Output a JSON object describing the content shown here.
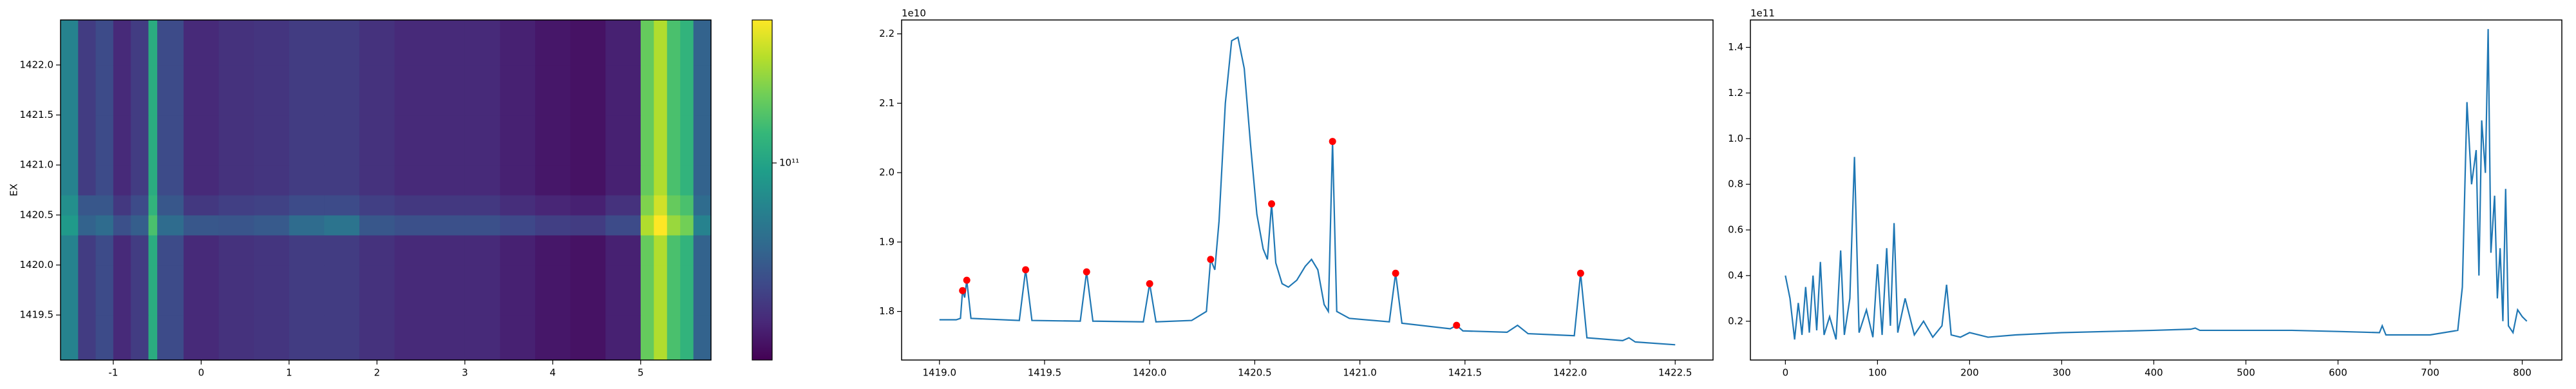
{
  "chart_data": [
    {
      "type": "heatmap",
      "ylabel": "EX",
      "xedges": [
        -1.6,
        -1.4,
        -1.2,
        -1.0,
        -0.8,
        -0.6,
        -0.5,
        -0.2,
        0.2,
        0.6,
        1.0,
        1.4,
        1.8,
        2.2,
        2.6,
        3.0,
        3.4,
        3.8,
        4.2,
        4.6,
        5.0,
        5.15,
        5.3,
        5.45,
        5.6,
        5.8
      ],
      "yedges": [
        1419.05,
        1419.5,
        1420.0,
        1420.3,
        1420.5,
        1420.7,
        1421.0,
        1421.5,
        1422.0,
        1422.45
      ],
      "z": [
        [
          70000000000.0,
          35000000000.0,
          40000000000.0,
          30000000000.0,
          35000000000.0,
          110000000000.0,
          40000000000.0,
          30000000000.0,
          32000000000.0,
          33000000000.0,
          35000000000.0,
          35000000000.0,
          32000000000.0,
          30000000000.0,
          30000000000.0,
          30000000000.0,
          28000000000.0,
          26000000000.0,
          25000000000.0,
          28000000000.0,
          160000000000.0,
          220000000000.0,
          140000000000.0,
          120000000000.0,
          50000000000.0
        ],
        [
          70000000000.0,
          35000000000.0,
          40000000000.0,
          30000000000.0,
          35000000000.0,
          110000000000.0,
          40000000000.0,
          30000000000.0,
          32000000000.0,
          33000000000.0,
          35000000000.0,
          35000000000.0,
          32000000000.0,
          30000000000.0,
          30000000000.0,
          30000000000.0,
          28000000000.0,
          26000000000.0,
          25000000000.0,
          28000000000.0,
          160000000000.0,
          220000000000.0,
          140000000000.0,
          120000000000.0,
          50000000000.0
        ],
        [
          70000000000.0,
          35000000000.0,
          40000000000.0,
          30000000000.0,
          35000000000.0,
          110000000000.0,
          40000000000.0,
          30000000000.0,
          32000000000.0,
          33000000000.0,
          35000000000.0,
          35000000000.0,
          32000000000.0,
          30000000000.0,
          30000000000.0,
          30000000000.0,
          28000000000.0,
          26000000000.0,
          25000000000.0,
          28000000000.0,
          160000000000.0,
          220000000000.0,
          140000000000.0,
          120000000000.0,
          50000000000.0
        ],
        [
          90000000000.0,
          50000000000.0,
          55000000000.0,
          42000000000.0,
          48000000000.0,
          140000000000.0,
          55000000000.0,
          45000000000.0,
          44000000000.0,
          46000000000.0,
          55000000000.0,
          60000000000.0,
          45000000000.0,
          42000000000.0,
          42000000000.0,
          42000000000.0,
          39000000000.0,
          36000000000.0,
          35000000000.0,
          40000000000.0,
          220000000000.0,
          300000000000.0,
          200000000000.0,
          170000000000.0,
          70000000000.0
        ],
        [
          80000000000.0,
          45000000000.0,
          45000000000.0,
          34000000000.0,
          40000000000.0,
          120000000000.0,
          45000000000.0,
          34000000000.0,
          36000000000.0,
          37000000000.0,
          40000000000.0,
          40000000000.0,
          36000000000.0,
          34000000000.0,
          34000000000.0,
          34000000000.0,
          31000000000.0,
          29000000000.0,
          28000000000.0,
          32000000000.0,
          180000000000.0,
          250000000000.0,
          160000000000.0,
          140000000000.0,
          55000000000.0
        ],
        [
          70000000000.0,
          35000000000.0,
          40000000000.0,
          30000000000.0,
          35000000000.0,
          110000000000.0,
          40000000000.0,
          30000000000.0,
          32000000000.0,
          33000000000.0,
          35000000000.0,
          35000000000.0,
          32000000000.0,
          30000000000.0,
          30000000000.0,
          30000000000.0,
          28000000000.0,
          26000000000.0,
          25000000000.0,
          28000000000.0,
          160000000000.0,
          220000000000.0,
          140000000000.0,
          120000000000.0,
          50000000000.0
        ],
        [
          70000000000.0,
          35000000000.0,
          40000000000.0,
          30000000000.0,
          35000000000.0,
          110000000000.0,
          40000000000.0,
          30000000000.0,
          32000000000.0,
          33000000000.0,
          35000000000.0,
          35000000000.0,
          32000000000.0,
          30000000000.0,
          30000000000.0,
          30000000000.0,
          28000000000.0,
          26000000000.0,
          25000000000.0,
          28000000000.0,
          160000000000.0,
          220000000000.0,
          140000000000.0,
          120000000000.0,
          50000000000.0
        ],
        [
          70000000000.0,
          35000000000.0,
          40000000000.0,
          30000000000.0,
          35000000000.0,
          110000000000.0,
          40000000000.0,
          30000000000.0,
          32000000000.0,
          33000000000.0,
          35000000000.0,
          35000000000.0,
          32000000000.0,
          30000000000.0,
          30000000000.0,
          30000000000.0,
          28000000000.0,
          26000000000.0,
          25000000000.0,
          28000000000.0,
          160000000000.0,
          220000000000.0,
          140000000000.0,
          120000000000.0,
          50000000000.0
        ],
        [
          70000000000.0,
          35000000000.0,
          40000000000.0,
          30000000000.0,
          35000000000.0,
          110000000000.0,
          40000000000.0,
          30000000000.0,
          32000000000.0,
          33000000000.0,
          35000000000.0,
          35000000000.0,
          32000000000.0,
          30000000000.0,
          30000000000.0,
          30000000000.0,
          28000000000.0,
          26000000000.0,
          25000000000.0,
          28000000000.0,
          160000000000.0,
          220000000000.0,
          140000000000.0,
          120000000000.0,
          50000000000.0
        ]
      ],
      "xlim": [
        -1.6,
        5.8
      ],
      "ylim": [
        1419.05,
        1422.45
      ],
      "xticks": [
        -1,
        0,
        1,
        2,
        3,
        4,
        5
      ],
      "yticks": [
        1419.5,
        {
          "value": 1420,
          "label": "1420.0"
        },
        1420.5,
        {
          "value": 1421,
          "label": "1421.0"
        },
        1421.5,
        {
          "value": 1422,
          "label": "1422.0"
        }
      ],
      "colorbar": {
        "colormap": "viridis",
        "scale": "log",
        "lim": [
          22000000000.0,
          300000000000.0
        ],
        "ticks": [
          {
            "value": 100000000000.0,
            "label": "10¹¹"
          }
        ]
      }
    },
    {
      "type": "line",
      "offset_label": "1e10",
      "x": [
        1419.0,
        1419.08,
        1419.1,
        1419.11,
        1419.12,
        1419.13,
        1419.15,
        1419.38,
        1419.41,
        1419.44,
        1419.67,
        1419.7,
        1419.73,
        1419.97,
        1420.0,
        1420.03,
        1420.2,
        1420.27,
        1420.29,
        1420.31,
        1420.33,
        1420.36,
        1420.39,
        1420.42,
        1420.45,
        1420.48,
        1420.51,
        1420.54,
        1420.56,
        1420.58,
        1420.6,
        1420.63,
        1420.66,
        1420.7,
        1420.74,
        1420.77,
        1420.8,
        1420.83,
        1420.85,
        1420.87,
        1420.89,
        1420.95,
        1421.14,
        1421.17,
        1421.2,
        1421.43,
        1421.46,
        1421.49,
        1421.7,
        1421.75,
        1421.8,
        1422.02,
        1422.05,
        1422.08,
        1422.25,
        1422.28,
        1422.31,
        1422.5
      ],
      "series": [
        {
          "color": "#1f77b4",
          "values": [
            1.788,
            1.788,
            1.79,
            1.83,
            1.82,
            1.845,
            1.79,
            1.787,
            1.86,
            1.787,
            1.786,
            1.857,
            1.786,
            1.785,
            1.84,
            1.785,
            1.787,
            1.8,
            1.875,
            1.86,
            1.93,
            2.1,
            2.19,
            2.195,
            2.15,
            2.04,
            1.94,
            1.89,
            1.875,
            1.955,
            1.87,
            1.84,
            1.835,
            1.845,
            1.865,
            1.875,
            1.86,
            1.81,
            1.8,
            2.045,
            1.8,
            1.79,
            1.785,
            1.855,
            1.783,
            1.775,
            1.78,
            1.772,
            1.77,
            1.78,
            1.768,
            1.765,
            1.855,
            1.762,
            1.758,
            1.762,
            1.756,
            1.752
          ]
        }
      ],
      "markers": {
        "color": "#ff0000",
        "x": [
          1419.11,
          1419.13,
          1419.41,
          1419.7,
          1420.0,
          1420.29,
          1420.58,
          1420.87,
          1421.17,
          1421.46,
          1422.05
        ],
        "values": [
          1.83,
          1.845,
          1.86,
          1.857,
          1.84,
          1.875,
          1.955,
          2.045,
          1.855,
          1.78,
          1.855
        ]
      },
      "xlim": [
        1418.82,
        1422.68
      ],
      "ylim": [
        1.73,
        2.22
      ],
      "xticks": [
        {
          "value": 1419,
          "label": "1419.0"
        },
        1419.5,
        {
          "value": 1420,
          "label": "1420.0"
        },
        1420.5,
        {
          "value": 1421,
          "label": "1421.0"
        },
        1421.5,
        {
          "value": 1422,
          "label": "1422.0"
        },
        1422.5
      ],
      "yticks": [
        1.8,
        1.9,
        {
          "value": 2,
          "label": "2.0"
        },
        2.1,
        2.2
      ]
    },
    {
      "type": "line",
      "offset_label": "1e11",
      "x": [
        0,
        5,
        10,
        14,
        18,
        22,
        26,
        30,
        34,
        38,
        42,
        48,
        55,
        60,
        64,
        70,
        75,
        80,
        88,
        95,
        100,
        105,
        110,
        114,
        118,
        122,
        130,
        140,
        150,
        160,
        170,
        175,
        180,
        190,
        200,
        220,
        250,
        300,
        350,
        400,
        440,
        445,
        450,
        500,
        550,
        600,
        645,
        648,
        652,
        700,
        730,
        735,
        740,
        745,
        750,
        753,
        756,
        760,
        763,
        766,
        770,
        773,
        776,
        779,
        782,
        785,
        790,
        795,
        800,
        805
      ],
      "series": [
        {
          "color": "#1f77b4",
          "values": [
            0.4,
            0.3,
            0.12,
            0.28,
            0.14,
            0.35,
            0.15,
            0.4,
            0.16,
            0.46,
            0.14,
            0.22,
            0.12,
            0.51,
            0.14,
            0.3,
            0.92,
            0.15,
            0.25,
            0.13,
            0.45,
            0.14,
            0.52,
            0.18,
            0.63,
            0.15,
            0.3,
            0.14,
            0.2,
            0.13,
            0.18,
            0.36,
            0.14,
            0.13,
            0.15,
            0.13,
            0.14,
            0.15,
            0.155,
            0.16,
            0.165,
            0.17,
            0.16,
            0.16,
            0.16,
            0.155,
            0.15,
            0.18,
            0.14,
            0.14,
            0.16,
            0.35,
            1.16,
            0.8,
            0.95,
            0.4,
            1.08,
            0.85,
            1.48,
            0.5,
            0.75,
            0.3,
            0.52,
            0.2,
            0.78,
            0.18,
            0.15,
            0.25,
            0.22,
            0.2
          ]
        }
      ],
      "xlim": [
        -38,
        843
      ],
      "ylim": [
        0.03,
        1.52
      ],
      "xticks": [
        0,
        100,
        200,
        300,
        400,
        500,
        600,
        700,
        800
      ],
      "yticks": [
        0.2,
        0.4,
        0.6,
        0.8,
        {
          "value": 1,
          "label": "1.0"
        },
        1.2,
        1.4
      ]
    }
  ]
}
